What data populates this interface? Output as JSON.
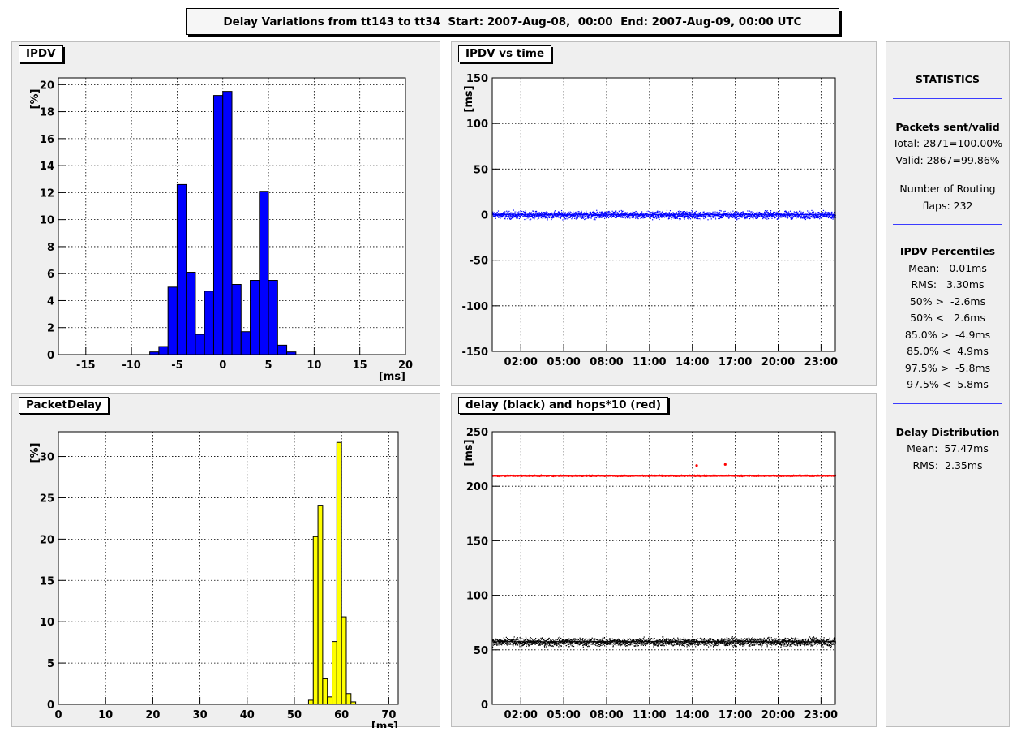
{
  "header": {
    "title": "Delay Variations from tt143 to tt34  Start: 2007-Aug-08,  00:00  End: 2007-Aug-09, 00:00 UTC"
  },
  "panels": {
    "ipdv": {
      "title": "IPDV"
    },
    "ipdv_time": {
      "title": "IPDV vs time"
    },
    "packet_delay": {
      "title": "PacketDelay"
    },
    "delay_hops": {
      "title": "delay (black) and hops*10 (red)"
    }
  },
  "stats": {
    "title": "STATISTICS",
    "packets_header": "Packets sent/valid",
    "total": "Total: 2871=100.00%",
    "valid": "Valid: 2867=99.86%",
    "flaps_line1": "Number of Routing",
    "flaps_line2": "flaps: 232",
    "percentiles_header": "IPDV Percentiles",
    "percentiles": [
      "Mean:   0.01ms",
      "RMS:   3.30ms",
      "50% >  -2.6ms",
      "50% <   2.6ms",
      "85.0% >  -4.9ms",
      "85.0% <  4.9ms",
      "97.5% >  -5.8ms",
      "97.5% <  5.8ms"
    ],
    "delay_header": "Delay Distribution",
    "delay_mean": "Mean:  57.47ms",
    "delay_rms": "RMS:  2.35ms"
  },
  "colors": {
    "ipdv_bar": "#0000ff",
    "delay_bar": "#ffff00",
    "delay_series": "#000000",
    "hops_series": "#ff0000",
    "separator": "#3b3bff"
  },
  "chart_data": [
    {
      "id": "ipdv",
      "type": "bar",
      "title": "IPDV",
      "xlabel": "[ms]",
      "ylabel": "[%]",
      "xlim": [
        -18,
        20
      ],
      "ylim": [
        0,
        20.5
      ],
      "xticks": [
        -15,
        -10,
        -5,
        0,
        5,
        10,
        15,
        20
      ],
      "yticks": [
        0,
        2,
        4,
        6,
        8,
        10,
        12,
        14,
        16,
        18,
        20
      ],
      "grid": true,
      "bin_width": 1,
      "bins": [
        {
          "x0": -8,
          "value": 0.2
        },
        {
          "x0": -7,
          "value": 0.6
        },
        {
          "x0": -6,
          "value": 5.0
        },
        {
          "x0": -5,
          "value": 12.6
        },
        {
          "x0": -4,
          "value": 6.1
        },
        {
          "x0": -3,
          "value": 1.5
        },
        {
          "x0": -2,
          "value": 4.7
        },
        {
          "x0": -1,
          "value": 19.2
        },
        {
          "x0": 0,
          "value": 19.5
        },
        {
          "x0": 1,
          "value": 5.2
        },
        {
          "x0": 2,
          "value": 1.7
        },
        {
          "x0": 3,
          "value": 5.5
        },
        {
          "x0": 4,
          "value": 12.1
        },
        {
          "x0": 5,
          "value": 5.5
        },
        {
          "x0": 6,
          "value": 0.7
        },
        {
          "x0": 7,
          "value": 0.2
        }
      ]
    },
    {
      "id": "ipdv_time",
      "type": "scatter",
      "title": "IPDV vs time",
      "xlabel": "",
      "ylabel": "[ms]",
      "xlim": [
        0,
        24
      ],
      "ylim": [
        -150,
        150
      ],
      "xtick_hours": [
        2,
        5,
        8,
        11,
        14,
        17,
        20,
        23
      ],
      "xtick_labels": [
        "02:00",
        "05:00",
        "08:00",
        "11:00",
        "14:00",
        "17:00",
        "20:00",
        "23:00"
      ],
      "yticks": [
        -150,
        -100,
        -50,
        0,
        50,
        100,
        150
      ],
      "grid": true,
      "series": [
        {
          "center": 0,
          "band": [
            -6,
            6
          ]
        }
      ]
    },
    {
      "id": "packet_delay",
      "type": "bar",
      "title": "PacketDelay",
      "xlabel": "[ms]",
      "ylabel": "[%]",
      "xlim": [
        0,
        72
      ],
      "ylim": [
        0,
        33
      ],
      "xticks": [
        0,
        10,
        20,
        30,
        40,
        50,
        60,
        70
      ],
      "yticks": [
        0,
        5,
        10,
        15,
        20,
        25,
        30
      ],
      "grid": true,
      "bin_width": 1,
      "bins": [
        {
          "x0": 53,
          "value": 0.5
        },
        {
          "x0": 54,
          "value": 20.3
        },
        {
          "x0": 55,
          "value": 24.1
        },
        {
          "x0": 56,
          "value": 3.1
        },
        {
          "x0": 57,
          "value": 0.9
        },
        {
          "x0": 58,
          "value": 7.6
        },
        {
          "x0": 59,
          "value": 31.7
        },
        {
          "x0": 60,
          "value": 10.6
        },
        {
          "x0": 61,
          "value": 1.3
        },
        {
          "x0": 62,
          "value": 0.3
        }
      ]
    },
    {
      "id": "delay_hops",
      "type": "scatter",
      "title": "delay (black) and hops*10 (red)",
      "xlabel": "",
      "ylabel": "[ms]",
      "xlim": [
        0,
        24
      ],
      "ylim": [
        0,
        250
      ],
      "xtick_hours": [
        2,
        5,
        8,
        11,
        14,
        17,
        20,
        23
      ],
      "xtick_labels": [
        "02:00",
        "05:00",
        "08:00",
        "11:00",
        "14:00",
        "17:00",
        "20:00",
        "23:00"
      ],
      "yticks": [
        0,
        50,
        100,
        150,
        200,
        250
      ],
      "grid": true,
      "series": [
        {
          "name": "delay (black)",
          "center": 57.5,
          "band": [
            52,
            63
          ]
        },
        {
          "name": "hops*10 (red)",
          "center": 210,
          "band": [
            209,
            211
          ]
        }
      ],
      "outliers": [
        {
          "x": 16.3,
          "y": 220
        },
        {
          "x": 14.3,
          "y": 219
        }
      ]
    }
  ]
}
